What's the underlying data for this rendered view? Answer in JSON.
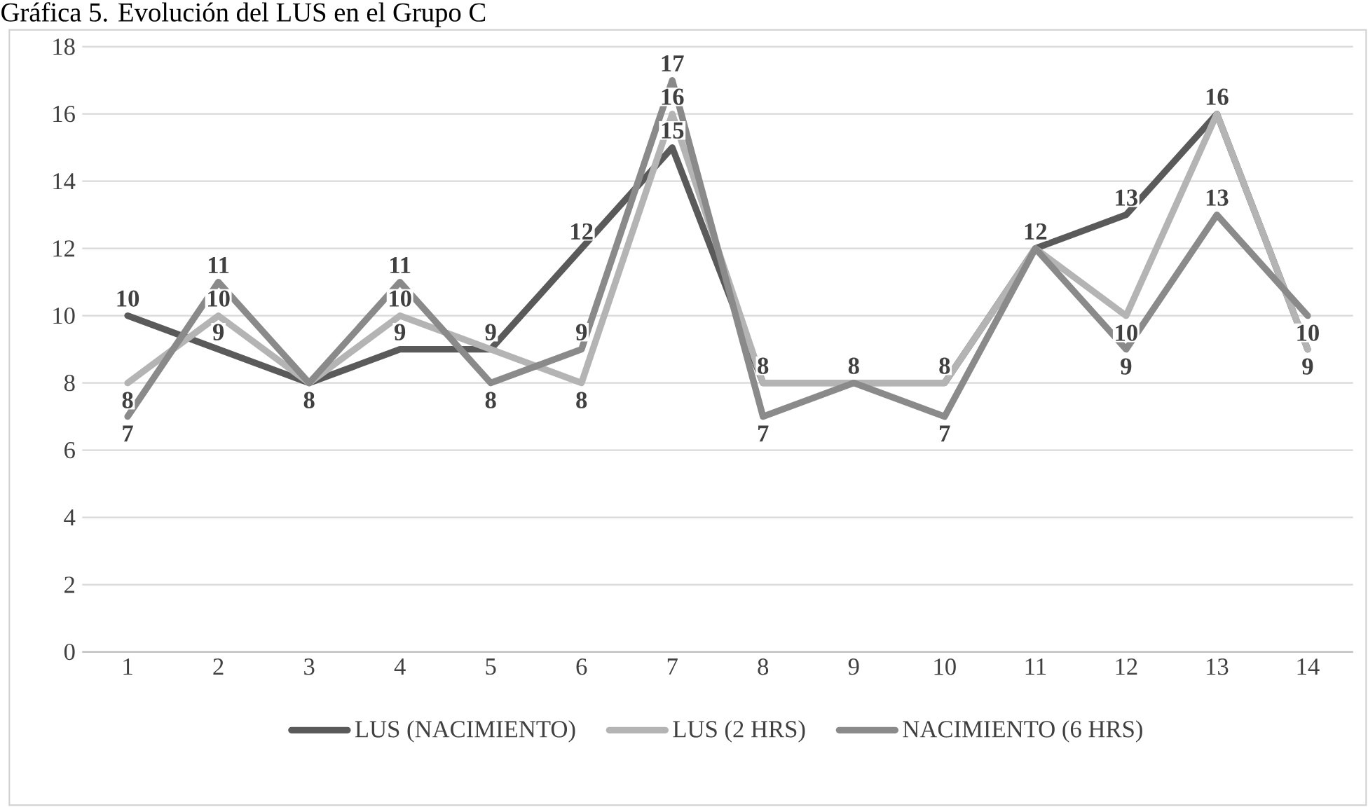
{
  "chart_data": {
    "type": "line",
    "title": "Gráfica 5. Evolución del LUS en el Grupo C",
    "categories": [
      "1",
      "2",
      "3",
      "4",
      "5",
      "6",
      "7",
      "8",
      "9",
      "10",
      "11",
      "12",
      "13",
      "14"
    ],
    "series": [
      {
        "name": "LUS (NACIMIENTO)",
        "color": "#5a5a5a",
        "values": [
          10,
          9,
          8,
          9,
          9,
          12,
          15,
          8,
          8,
          8,
          12,
          13,
          16,
          9
        ],
        "value_labels": [
          "10",
          "9",
          "8",
          "9",
          "9",
          "12",
          "15",
          "8",
          "8",
          "8",
          "12",
          "13",
          "16",
          "9"
        ]
      },
      {
        "name": "LUS (2 HRS)",
        "color": "#b4b4b4",
        "values": [
          8,
          10,
          8,
          10,
          9,
          8,
          16,
          8,
          8,
          8,
          12,
          10,
          16,
          9
        ],
        "value_labels": [
          "8",
          "10",
          null,
          "10",
          null,
          "8",
          "16",
          null,
          null,
          null,
          null,
          "10",
          null,
          null
        ]
      },
      {
        "name": "NACIMIENTO (6 HRS)",
        "color": "#8a8a8a",
        "values": [
          7,
          11,
          8,
          11,
          8,
          9,
          17,
          7,
          8,
          7,
          12,
          9,
          13,
          10
        ],
        "value_labels": [
          "7",
          "11",
          null,
          "11",
          "8",
          "9",
          "17",
          "7",
          null,
          "7",
          null,
          "9",
          "13",
          "10"
        ]
      }
    ],
    "ylim": [
      0,
      18
    ],
    "yticks": [
      0,
      2,
      4,
      6,
      8,
      10,
      12,
      14,
      16,
      18
    ],
    "grid": "y",
    "legend": "bottom",
    "marker": "none",
    "line_style": "solid"
  }
}
